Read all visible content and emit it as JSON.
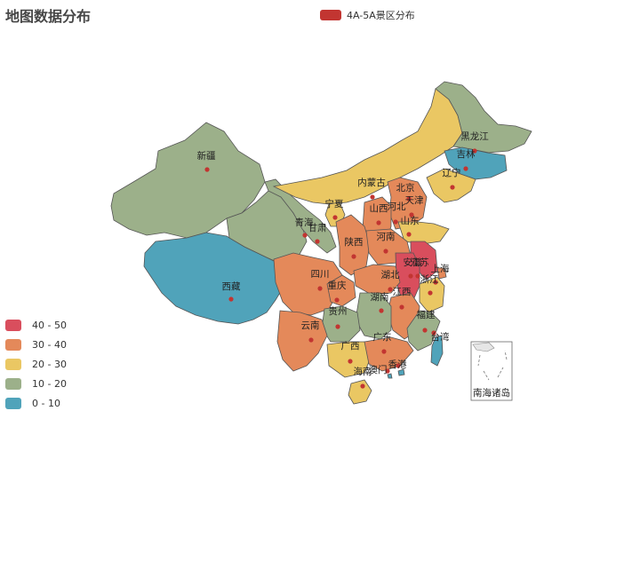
{
  "chart_data": {
    "type": "map",
    "title": "地图数据分布",
    "series": [
      {
        "name": "4A-5A景区分布",
        "color": "#c23531"
      }
    ],
    "visual_map": {
      "pieces": [
        {
          "label": "40 - 50",
          "min": 40,
          "max": 50,
          "color": "#d94e5d"
        },
        {
          "label": "30 - 40",
          "min": 30,
          "max": 40,
          "color": "#e4895a"
        },
        {
          "label": "20 - 30",
          "min": 20,
          "max": 30,
          "color": "#eac763"
        },
        {
          "label": "10 - 20",
          "min": 10,
          "max": 20,
          "color": "#9cb08a"
        },
        {
          "label": "0 - 10",
          "min": 0,
          "max": 10,
          "color": "#50a3ba"
        }
      ]
    },
    "regions": [
      {
        "name": "新疆",
        "range": "10 - 20"
      },
      {
        "name": "西藏",
        "range": "0 - 10"
      },
      {
        "name": "青海",
        "range": "10 - 20"
      },
      {
        "name": "甘肃",
        "range": "10 - 20"
      },
      {
        "name": "内蒙古",
        "range": "20 - 30"
      },
      {
        "name": "宁夏",
        "range": "20 - 30"
      },
      {
        "name": "黑龙江",
        "range": "10 - 20"
      },
      {
        "name": "吉林",
        "range": "0 - 10"
      },
      {
        "name": "辽宁",
        "range": "20 - 30"
      },
      {
        "name": "北京",
        "range": "30 - 40"
      },
      {
        "name": "天津",
        "range": "30 - 40"
      },
      {
        "name": "河北",
        "range": "30 - 40"
      },
      {
        "name": "山西",
        "range": "30 - 40"
      },
      {
        "name": "陕西",
        "range": "30 - 40"
      },
      {
        "name": "山东",
        "range": "20 - 30"
      },
      {
        "name": "河南",
        "range": "30 - 40"
      },
      {
        "name": "江苏",
        "range": "40 - 50"
      },
      {
        "name": "安徽",
        "range": "40 - 50"
      },
      {
        "name": "上海",
        "range": "30 - 40"
      },
      {
        "name": "浙江",
        "range": "20 - 30"
      },
      {
        "name": "湖北",
        "range": "30 - 40"
      },
      {
        "name": "四川",
        "range": "30 - 40"
      },
      {
        "name": "重庆",
        "range": "30 - 40"
      },
      {
        "name": "江西",
        "range": "30 - 40"
      },
      {
        "name": "湖南",
        "range": "10 - 20"
      },
      {
        "name": "贵州",
        "range": "10 - 20"
      },
      {
        "name": "云南",
        "range": "30 - 40"
      },
      {
        "name": "福建",
        "range": "10 - 20"
      },
      {
        "name": "广西",
        "range": "20 - 30"
      },
      {
        "name": "广东",
        "range": "30 - 40"
      },
      {
        "name": "海南",
        "range": "20 - 30"
      },
      {
        "name": "台湾",
        "range": "0 - 10"
      },
      {
        "name": "香港",
        "range": "0 - 10"
      },
      {
        "name": "澳门",
        "range": "0 - 10"
      }
    ],
    "inset_label": "南海诸岛"
  }
}
